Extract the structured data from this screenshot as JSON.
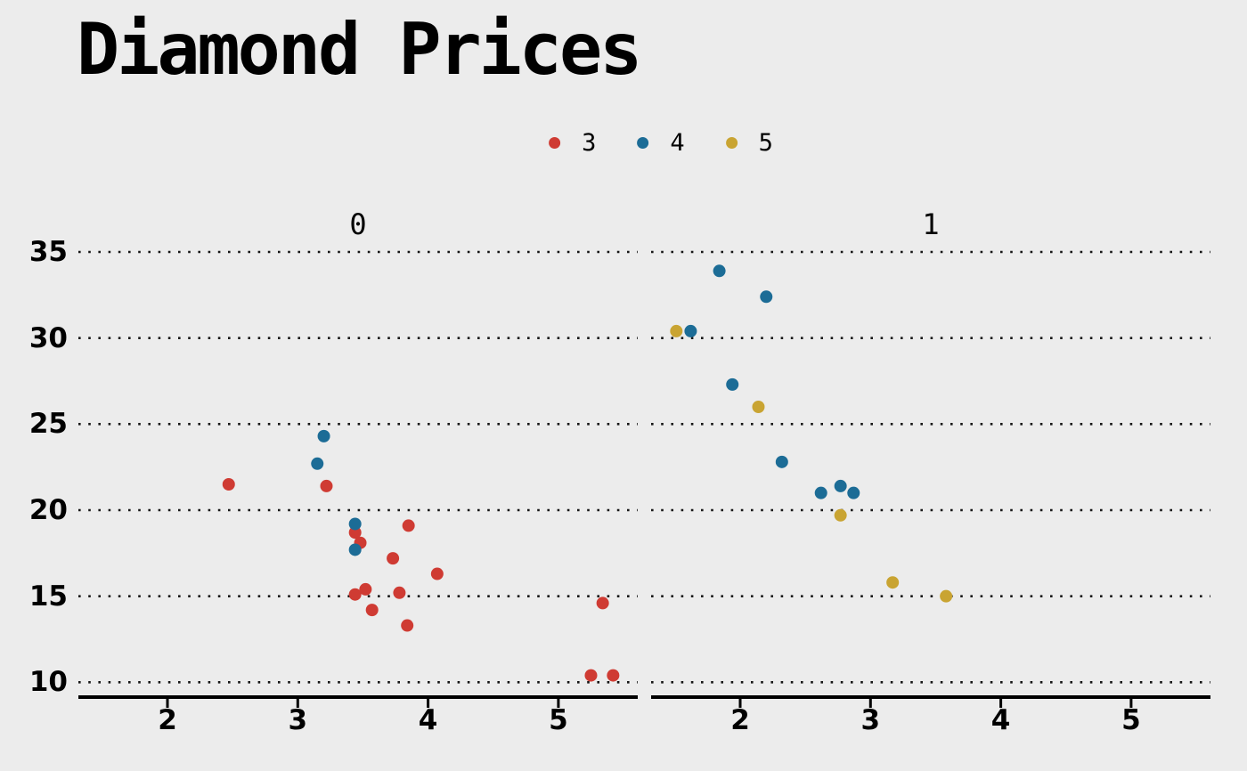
{
  "title": "Diamond Prices",
  "colors": {
    "background": "#ECECEC",
    "grid": "#161616",
    "axis": "#000000",
    "red": "#CF3B33",
    "blue": "#1C6C96",
    "gold": "#C9A432"
  },
  "legend": {
    "position": "top-center",
    "items": [
      {
        "label": "3",
        "color": "#CF3B33"
      },
      {
        "label": "4",
        "color": "#1C6C96"
      },
      {
        "label": "5",
        "color": "#C9A432"
      }
    ]
  },
  "chart_data": {
    "type": "scatter",
    "title": "Diamond Prices",
    "xlabel": "",
    "ylabel": "",
    "faceted": true,
    "grid": "horizontal dotted lines only",
    "legend_position": "top center",
    "x_ticks": [
      2,
      3,
      4,
      5
    ],
    "y_ticks": [
      35,
      30,
      25,
      20,
      15,
      10
    ],
    "xlim": [
      1.35,
      5.6
    ],
    "ylim": [
      9.2,
      35.8
    ],
    "facets": [
      {
        "label": "0",
        "series": [
          {
            "name": "3",
            "color": "#CF3B33",
            "points": [
              [
                2.47,
                21.5
              ],
              [
                3.22,
                21.4
              ],
              [
                3.44,
                18.7
              ],
              [
                3.48,
                18.1
              ],
              [
                3.85,
                19.1
              ],
              [
                3.73,
                17.2
              ],
              [
                4.07,
                16.3
              ],
              [
                3.52,
                15.4
              ],
              [
                3.44,
                15.1
              ],
              [
                3.78,
                15.2
              ],
              [
                3.57,
                14.2
              ],
              [
                3.84,
                13.3
              ],
              [
                5.34,
                14.6
              ],
              [
                5.25,
                10.4
              ],
              [
                5.42,
                10.4
              ]
            ]
          },
          {
            "name": "4",
            "color": "#1C6C96",
            "points": [
              [
                3.2,
                24.3
              ],
              [
                3.15,
                22.7
              ],
              [
                3.44,
                19.2
              ],
              [
                3.44,
                17.7
              ]
            ]
          }
        ]
      },
      {
        "label": "1",
        "series": [
          {
            "name": "4",
            "color": "#1C6C96",
            "points": [
              [
                1.84,
                33.9
              ],
              [
                2.2,
                32.4
              ],
              [
                1.62,
                30.4
              ],
              [
                1.94,
                27.3
              ],
              [
                2.32,
                22.8
              ],
              [
                2.62,
                21.0
              ],
              [
                2.77,
                21.4
              ],
              [
                2.87,
                21.0
              ]
            ]
          },
          {
            "name": "5",
            "color": "#C9A432",
            "points": [
              [
                1.51,
                30.4
              ],
              [
                2.14,
                26.0
              ],
              [
                2.77,
                19.7
              ],
              [
                3.17,
                15.8
              ],
              [
                3.58,
                15.0
              ]
            ]
          }
        ]
      }
    ]
  }
}
